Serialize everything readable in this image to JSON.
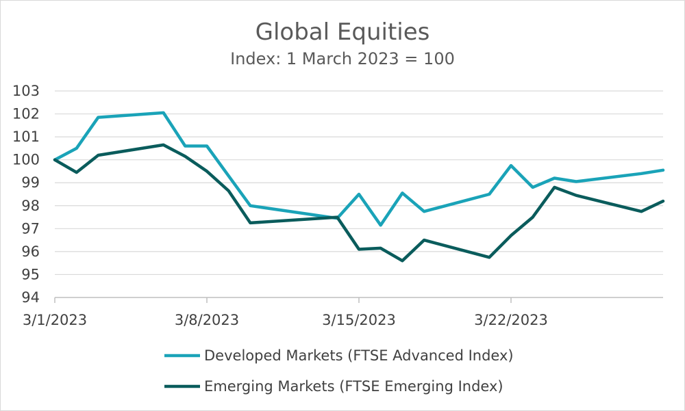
{
  "chart_data": {
    "type": "line",
    "title": "Global Equities",
    "subtitle": "Index: 1 March 2023 = 100",
    "xlabel": "",
    "ylabel": "",
    "ylim": [
      94,
      103
    ],
    "yticks": [
      "94",
      "95",
      "96",
      "97",
      "98",
      "99",
      "100",
      "101",
      "102",
      "103"
    ],
    "xlim": [
      0,
      28
    ],
    "xticks": [
      {
        "day": 0,
        "label": "3/1/2023"
      },
      {
        "day": 7,
        "label": "3/8/2023"
      },
      {
        "day": 14,
        "label": "3/15/2023"
      },
      {
        "day": 21,
        "label": "3/22/2023"
      }
    ],
    "grid": true,
    "legend_position": "bottom",
    "series": [
      {
        "name": "Developed Markets (FTSE Advanced Index)",
        "color": "#1aa3b8",
        "x": [
          0,
          1,
          2,
          5,
          6,
          7,
          8,
          9,
          13,
          14,
          15,
          16,
          17,
          20,
          21,
          22,
          23,
          24,
          27,
          28
        ],
        "values": [
          100.0,
          100.5,
          101.85,
          102.05,
          100.6,
          100.6,
          99.3,
          98.0,
          97.45,
          98.5,
          97.15,
          98.55,
          97.75,
          98.5,
          99.75,
          98.8,
          99.2,
          99.05,
          99.4,
          99.55
        ]
      },
      {
        "name": "Emerging Markets (FTSE Emerging Index)",
        "color": "#0a5c5c",
        "x": [
          0,
          1,
          2,
          5,
          6,
          7,
          8,
          9,
          13,
          14,
          15,
          16,
          17,
          20,
          21,
          22,
          23,
          24,
          27,
          28
        ],
        "values": [
          100.0,
          99.45,
          100.2,
          100.65,
          100.15,
          99.5,
          98.65,
          97.25,
          97.5,
          96.1,
          96.15,
          95.6,
          96.5,
          95.75,
          96.7,
          97.5,
          98.8,
          98.45,
          97.75,
          98.2
        ]
      }
    ]
  }
}
